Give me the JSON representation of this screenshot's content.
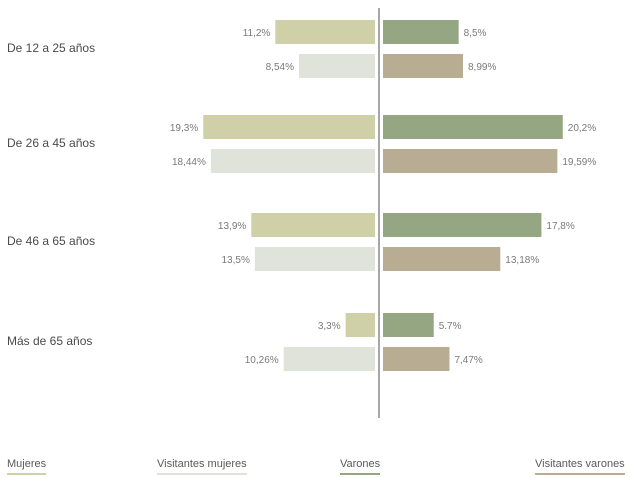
{
  "chart_data": {
    "type": "bar",
    "orientation": "horizontal-diverging",
    "categories": [
      "De 12 a 25 años",
      "De 26 a 45 años",
      "De 46 a 65 años",
      "Más de 65 años"
    ],
    "series": [
      {
        "name": "Mujeres",
        "side": "left",
        "color": "#cfd0a8",
        "values": [
          11.2,
          19.3,
          13.9,
          3.3
        ],
        "labels": [
          "11,2%",
          "19,3%",
          "13,9%",
          "3,3%"
        ]
      },
      {
        "name": "Visitantes mujeres",
        "side": "left",
        "color": "#dfe3da",
        "values": [
          8.54,
          18.44,
          13.5,
          10.26
        ],
        "labels": [
          "8,54%",
          "18,44%",
          "13,5%",
          "10,26%"
        ]
      },
      {
        "name": "Varones",
        "side": "right",
        "color": "#94a782",
        "values": [
          8.5,
          20.2,
          17.8,
          5.7
        ],
        "labels": [
          "8,5%",
          "20,2%",
          "17,8%",
          "5.7%"
        ]
      },
      {
        "name": "Visitantes varones",
        "side": "right",
        "color": "#b8ad92",
        "values": [
          8.99,
          19.59,
          13.18,
          7.47
        ],
        "labels": [
          "8,99%",
          "19,59%",
          "13,18%",
          "7,47%"
        ]
      }
    ],
    "legend_placement": "bottom",
    "grid": false
  }
}
